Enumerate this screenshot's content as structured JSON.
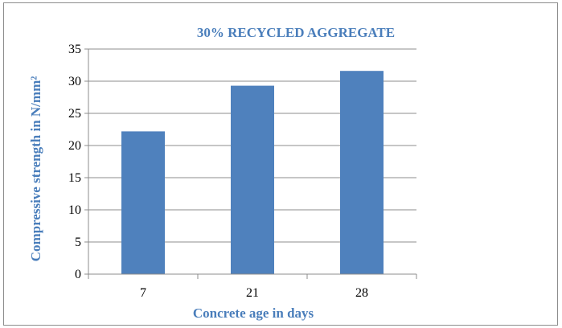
{
  "chart_data": {
    "type": "bar",
    "title": "30% RECYCLED AGGREGATE",
    "xlabel": "Concrete age in days",
    "ylabel": "Compressive strength in N/mm²",
    "categories": [
      "7",
      "21",
      "28"
    ],
    "values": [
      22.2,
      29.3,
      31.6
    ],
    "ylim": [
      0,
      35
    ],
    "yticks": [
      0,
      5,
      10,
      15,
      20,
      25,
      30,
      35
    ],
    "grid": true,
    "legend": "none",
    "bar_color": "#4f81bd",
    "text_color": "#4a7ebb"
  }
}
